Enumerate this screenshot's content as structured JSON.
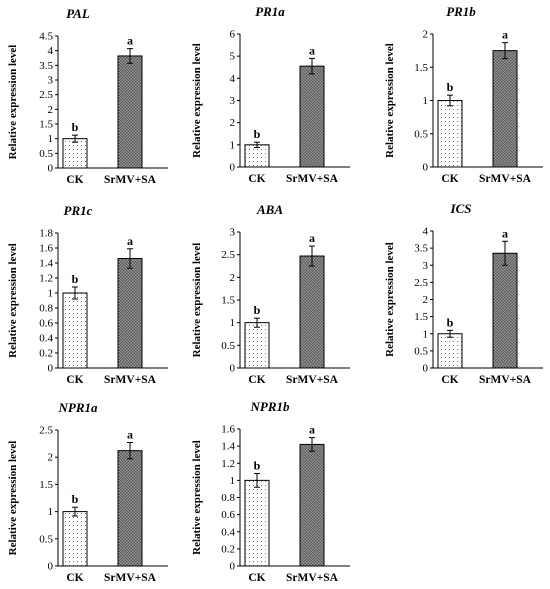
{
  "chart_data": [
    {
      "type": "bar",
      "title": "PAL",
      "categories": [
        "CK",
        "SrMV+SA"
      ],
      "values": [
        1.0,
        3.82
      ],
      "errors": [
        0.12,
        0.25
      ],
      "significance": [
        "b",
        "a"
      ],
      "ylabel": "Relative expression level",
      "ylim": [
        0,
        4.5
      ],
      "yticks": [
        "0",
        "0.5",
        "1",
        "1.5",
        "2",
        "2.5",
        "3",
        "3.5",
        "4",
        "4.5"
      ]
    },
    {
      "type": "bar",
      "title": "PR1a",
      "categories": [
        "CK",
        "SrMV+SA"
      ],
      "values": [
        1.0,
        4.55
      ],
      "errors": [
        0.12,
        0.35
      ],
      "significance": [
        "b",
        "a"
      ],
      "ylabel": "Relative expression level",
      "ylim": [
        0,
        6
      ],
      "yticks": [
        "0",
        "1",
        "2",
        "3",
        "4",
        "5",
        "6"
      ]
    },
    {
      "type": "bar",
      "title": "PR1b",
      "categories": [
        "CK",
        "SrMV+SA"
      ],
      "values": [
        1.0,
        1.75
      ],
      "errors": [
        0.08,
        0.12
      ],
      "significance": [
        "b",
        "a"
      ],
      "ylabel": "Relative expression level",
      "ylim": [
        0,
        2
      ],
      "yticks": [
        "0",
        "0.5",
        "1",
        "1.5",
        "2"
      ]
    },
    {
      "type": "bar",
      "title": "PR1c",
      "categories": [
        "CK",
        "SrMV+SA"
      ],
      "values": [
        1.0,
        1.46
      ],
      "errors": [
        0.08,
        0.13
      ],
      "significance": [
        "b",
        "a"
      ],
      "ylabel": "Relative expression level",
      "ylim": [
        0,
        1.8
      ],
      "yticks": [
        "0",
        "0.2",
        "0.4",
        "0.6",
        "0.8",
        "1",
        "1.2",
        "1.4",
        "1.6",
        "1.8"
      ]
    },
    {
      "type": "bar",
      "title": "ABA",
      "categories": [
        "CK",
        "SrMV+SA"
      ],
      "values": [
        1.0,
        2.47
      ],
      "errors": [
        0.1,
        0.22
      ],
      "significance": [
        "b",
        "a"
      ],
      "ylabel": "Relative expression level",
      "ylim": [
        0,
        3
      ],
      "yticks": [
        "0",
        "0.5",
        "1",
        "1.5",
        "2",
        "2.5",
        "3"
      ]
    },
    {
      "type": "bar",
      "title": "ICS",
      "categories": [
        "CK",
        "SrMV+SA"
      ],
      "values": [
        1.0,
        3.35
      ],
      "errors": [
        0.1,
        0.35
      ],
      "significance": [
        "b",
        "a"
      ],
      "ylabel": "Relative expression level",
      "ylim": [
        0,
        4
      ],
      "yticks": [
        "0",
        "0.5",
        "1",
        "1.5",
        "2",
        "2.5",
        "3",
        "3.5",
        "4"
      ]
    },
    {
      "type": "bar",
      "title": "NPR1a",
      "categories": [
        "CK",
        "SrMV+SA"
      ],
      "values": [
        1.0,
        2.12
      ],
      "errors": [
        0.08,
        0.15
      ],
      "significance": [
        "b",
        "a"
      ],
      "ylabel": "Relative expression level",
      "ylim": [
        0,
        2.5
      ],
      "yticks": [
        "0",
        "0.5",
        "1",
        "1.5",
        "2",
        "2.5"
      ]
    },
    {
      "type": "bar",
      "title": "NPR1b",
      "categories": [
        "CK",
        "SrMV+SA"
      ],
      "values": [
        1.0,
        1.42
      ],
      "errors": [
        0.08,
        0.08
      ],
      "significance": [
        "b",
        "a"
      ],
      "ylabel": "Relative expression level",
      "ylim": [
        0,
        1.6
      ],
      "yticks": [
        "0",
        "0.2",
        "0.4",
        "0.6",
        "0.8",
        "1",
        "1.2",
        "1.4",
        "1.6"
      ]
    }
  ]
}
